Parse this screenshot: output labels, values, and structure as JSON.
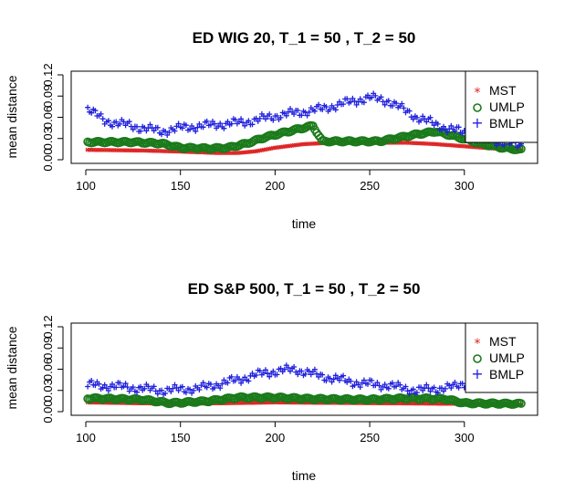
{
  "chart_data": [
    {
      "type": "scatter",
      "title": "ED WIG 20, T_1 = 50 , T_2 = 50",
      "xlabel": "time",
      "ylabel": "mean distance",
      "xlim": [
        100,
        330
      ],
      "ylim": [
        0,
        0.12
      ],
      "xticks": [
        100,
        150,
        200,
        250,
        300
      ],
      "yticks": [
        0.0,
        0.03,
        0.06,
        0.09,
        0.12
      ],
      "xtick_labels": [
        "100",
        "150",
        "200",
        "250",
        "300"
      ],
      "ytick_labels": [
        "0.00",
        "0.03",
        "0.06",
        "0.09",
        "0.12"
      ],
      "legend_position": "top-right",
      "grid": false,
      "series": [
        {
          "name": "MST",
          "marker": "*",
          "color": "#dd2222",
          "knots": [
            [
              101,
              0.014
            ],
            [
              130,
              0.013
            ],
            [
              150,
              0.0115
            ],
            [
              170,
              0.0095
            ],
            [
              180,
              0.0095
            ],
            [
              190,
              0.012
            ],
            [
              200,
              0.017
            ],
            [
              215,
              0.022
            ],
            [
              230,
              0.024
            ],
            [
              250,
              0.024
            ],
            [
              270,
              0.024
            ],
            [
              285,
              0.022
            ],
            [
              300,
              0.019
            ],
            [
              315,
              0.016
            ],
            [
              330,
              0.014
            ]
          ]
        },
        {
          "name": "UMLP",
          "marker": "o",
          "color": "#1a7a1a",
          "knots": [
            [
              101,
              0.025
            ],
            [
              125,
              0.025
            ],
            [
              140,
              0.023
            ],
            [
              150,
              0.017
            ],
            [
              165,
              0.016
            ],
            [
              175,
              0.017
            ],
            [
              185,
              0.023
            ],
            [
              195,
              0.032
            ],
            [
              210,
              0.042
            ],
            [
              220,
              0.048
            ],
            [
              225,
              0.026
            ],
            [
              240,
              0.026
            ],
            [
              255,
              0.026
            ],
            [
              275,
              0.036
            ],
            [
              285,
              0.04
            ],
            [
              295,
              0.033
            ],
            [
              310,
              0.022
            ],
            [
              320,
              0.017
            ],
            [
              330,
              0.014
            ]
          ]
        },
        {
          "name": "BMLP",
          "marker": "+",
          "color": "#2020dd",
          "knots": [
            [
              101,
              0.072
            ],
            [
              110,
              0.055
            ],
            [
              120,
              0.05
            ],
            [
              130,
              0.045
            ],
            [
              140,
              0.04
            ],
            [
              150,
              0.045
            ],
            [
              170,
              0.05
            ],
            [
              180,
              0.052
            ],
            [
              190,
              0.056
            ],
            [
              200,
              0.062
            ],
            [
              215,
              0.068
            ],
            [
              225,
              0.072
            ],
            [
              240,
              0.082
            ],
            [
              250,
              0.088
            ],
            [
              260,
              0.083
            ],
            [
              275,
              0.06
            ],
            [
              290,
              0.045
            ],
            [
              305,
              0.035
            ],
            [
              320,
              0.025
            ],
            [
              330,
              0.02
            ]
          ]
        }
      ]
    },
    {
      "type": "scatter",
      "title": "ED S&P 500, T_1 = 50 , T_2 = 50",
      "xlabel": "time",
      "ylabel": "mean distance",
      "xlim": [
        100,
        330
      ],
      "ylim": [
        0,
        0.12
      ],
      "xticks": [
        100,
        150,
        200,
        250,
        300
      ],
      "yticks": [
        0.0,
        0.03,
        0.06,
        0.09,
        0.12
      ],
      "xtick_labels": [
        "100",
        "150",
        "200",
        "250",
        "300"
      ],
      "ytick_labels": [
        "0.00",
        "0.03",
        "0.06",
        "0.09",
        "0.12"
      ],
      "legend_position": "top-right",
      "grid": false,
      "series": [
        {
          "name": "MST",
          "marker": "*",
          "color": "#dd2222",
          "knots": [
            [
              101,
              0.013
            ],
            [
              150,
              0.011
            ],
            [
              200,
              0.013
            ],
            [
              250,
              0.012
            ],
            [
              300,
              0.011
            ],
            [
              330,
              0.01
            ]
          ]
        },
        {
          "name": "UMLP",
          "marker": "o",
          "color": "#1a7a1a",
          "knots": [
            [
              101,
              0.019
            ],
            [
              130,
              0.017
            ],
            [
              145,
              0.012
            ],
            [
              165,
              0.015
            ],
            [
              180,
              0.02
            ],
            [
              200,
              0.02
            ],
            [
              220,
              0.018
            ],
            [
              250,
              0.017
            ],
            [
              270,
              0.019
            ],
            [
              290,
              0.018
            ],
            [
              300,
              0.012
            ],
            [
              330,
              0.011
            ]
          ]
        },
        {
          "name": "BMLP",
          "marker": "+",
          "color": "#2020dd",
          "knots": [
            [
              101,
              0.038
            ],
            [
              120,
              0.035
            ],
            [
              140,
              0.03
            ],
            [
              160,
              0.033
            ],
            [
              180,
              0.045
            ],
            [
              195,
              0.055
            ],
            [
              210,
              0.06
            ],
            [
              225,
              0.05
            ],
            [
              245,
              0.04
            ],
            [
              260,
              0.037
            ],
            [
              275,
              0.03
            ],
            [
              295,
              0.035
            ],
            [
              310,
              0.05
            ],
            [
              330,
              0.04
            ]
          ]
        }
      ]
    }
  ]
}
